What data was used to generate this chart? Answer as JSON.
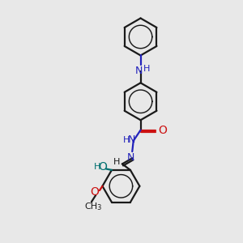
{
  "bg_color": "#e8e8e8",
  "bond_color": "#1a1a1a",
  "n_color": "#2222bb",
  "o_color": "#cc1111",
  "teal_color": "#007070",
  "line_width": 1.6,
  "figsize": [
    3.0,
    3.0
  ],
  "dpi": 100,
  "xlim": [
    0,
    10
  ],
  "ylim": [
    0,
    10
  ]
}
